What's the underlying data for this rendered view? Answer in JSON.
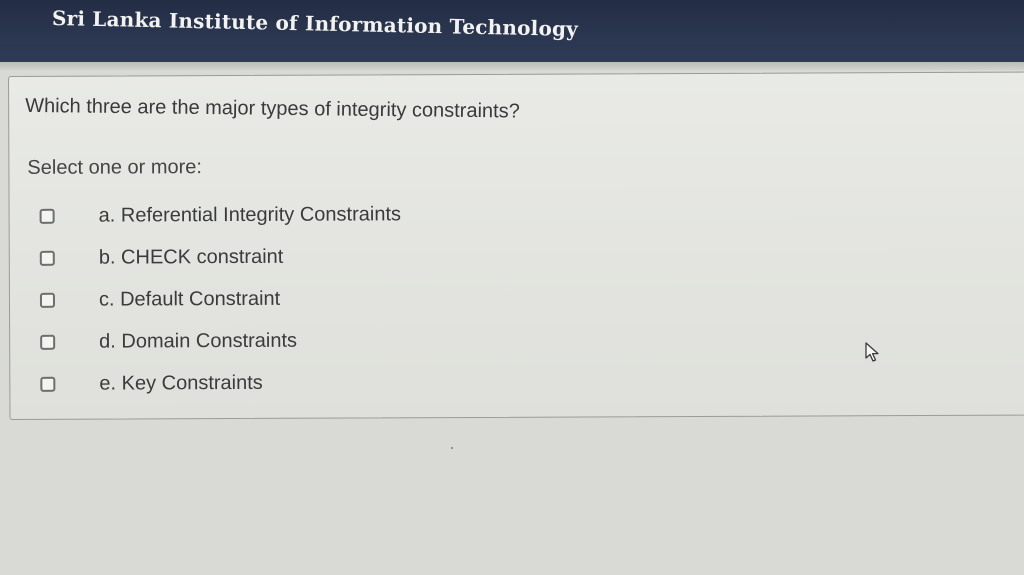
{
  "header": {
    "title": "Sri Lanka Institute of Information Technology",
    "background_color": "#2b3650"
  },
  "question": {
    "text": "Which three are the major types of integrity constraints?",
    "prompt": "Select one or more:",
    "options": [
      {
        "label": "a. Referential Integrity Constraints",
        "checked": false
      },
      {
        "label": "b. CHECK constraint",
        "checked": false
      },
      {
        "label": "c. Default Constraint",
        "checked": false
      },
      {
        "label": "d. Domain Constraints",
        "checked": false
      },
      {
        "label": "e. Key Constraints",
        "checked": false
      }
    ]
  },
  "cursor": {
    "icon": "mouse-pointer-icon"
  }
}
